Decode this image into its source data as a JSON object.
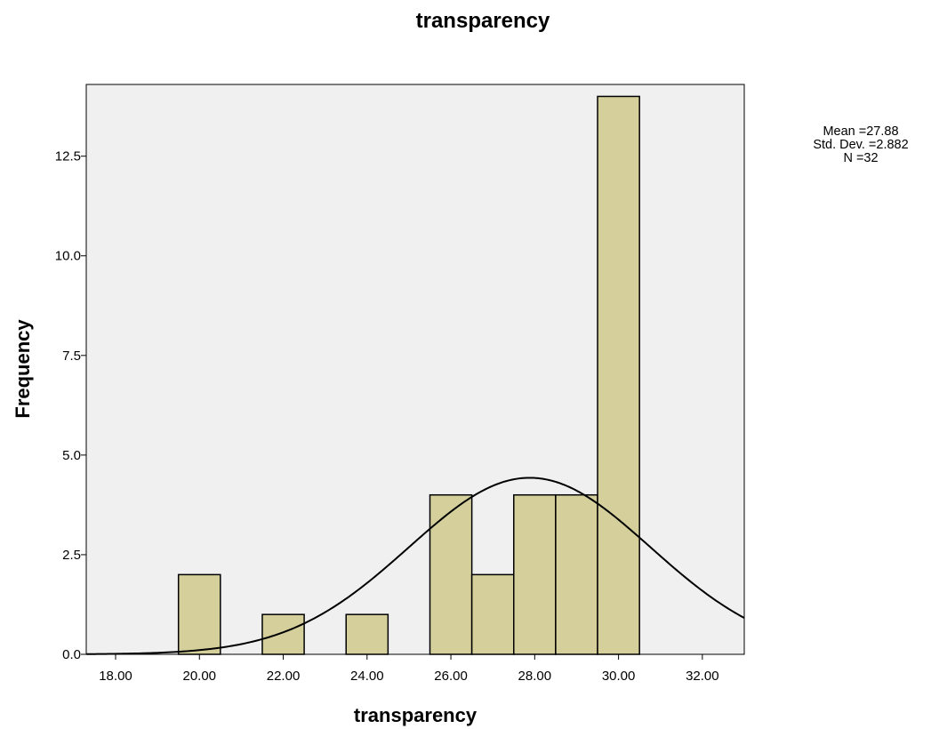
{
  "chart_data": {
    "type": "bar",
    "subtype": "histogram",
    "title": "transparency",
    "xlabel": "transparency",
    "ylabel": "Frequency",
    "xlim": [
      17.3,
      33.0
    ],
    "ylim": [
      0,
      14.3
    ],
    "x_ticks": [
      18,
      20,
      22,
      24,
      26,
      28,
      30,
      32
    ],
    "x_tick_labels": [
      "18.00",
      "20.00",
      "22.00",
      "24.00",
      "26.00",
      "28.00",
      "30.00",
      "32.00"
    ],
    "y_ticks": [
      0,
      2.5,
      5,
      7.5,
      10,
      12.5
    ],
    "y_tick_labels": [
      "0.0",
      "2.5",
      "5.0",
      "7.5",
      "10.0",
      "12.5"
    ],
    "bin_width": 1,
    "bins": [
      {
        "center": 20,
        "count": 2
      },
      {
        "center": 22,
        "count": 1
      },
      {
        "center": 24,
        "count": 1
      },
      {
        "center": 26,
        "count": 4
      },
      {
        "center": 27,
        "count": 2
      },
      {
        "center": 28,
        "count": 4
      },
      {
        "center": 29,
        "count": 4
      },
      {
        "center": 30,
        "count": 14
      }
    ],
    "normal_curve": {
      "mean": 27.88,
      "std": 2.882,
      "n": 32
    },
    "stats_lines": [
      "Mean =27.88",
      "Std. Dev. =2.882",
      "N =32"
    ],
    "grid": false,
    "colors": {
      "bar_fill": "#d4cf9b",
      "bar_stroke": "#000000",
      "plot_bg": "#f0f0f0",
      "curve": "#000000"
    }
  }
}
